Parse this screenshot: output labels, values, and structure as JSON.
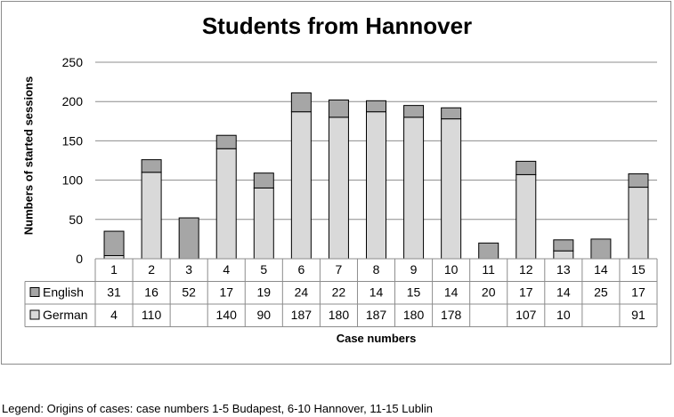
{
  "chart_data": {
    "type": "bar",
    "stacked": true,
    "title": "Students from Hannover",
    "xlabel": "Case numbers",
    "ylabel": "Numbers of started sessions",
    "ylim": [
      0,
      250
    ],
    "yticks": [
      0,
      50,
      100,
      150,
      200,
      250
    ],
    "grid": true,
    "categories": [
      "1",
      "2",
      "3",
      "4",
      "5",
      "6",
      "7",
      "8",
      "9",
      "10",
      "11",
      "12",
      "13",
      "14",
      "15"
    ],
    "series": [
      {
        "name": "German",
        "color": "#d9d9d9",
        "values": [
          4,
          110,
          null,
          140,
          90,
          187,
          180,
          187,
          180,
          178,
          null,
          107,
          10,
          null,
          91
        ]
      },
      {
        "name": "English",
        "color": "#a6a6a6",
        "values": [
          31,
          16,
          52,
          17,
          19,
          24,
          22,
          14,
          15,
          14,
          20,
          17,
          14,
          25,
          17
        ]
      }
    ],
    "table_rows": [
      "English",
      "German"
    ]
  },
  "legend_note": "Legend: Origins of cases: case numbers 1-5 Budapest, 6-10 Hannover, 11-15 Lublin"
}
